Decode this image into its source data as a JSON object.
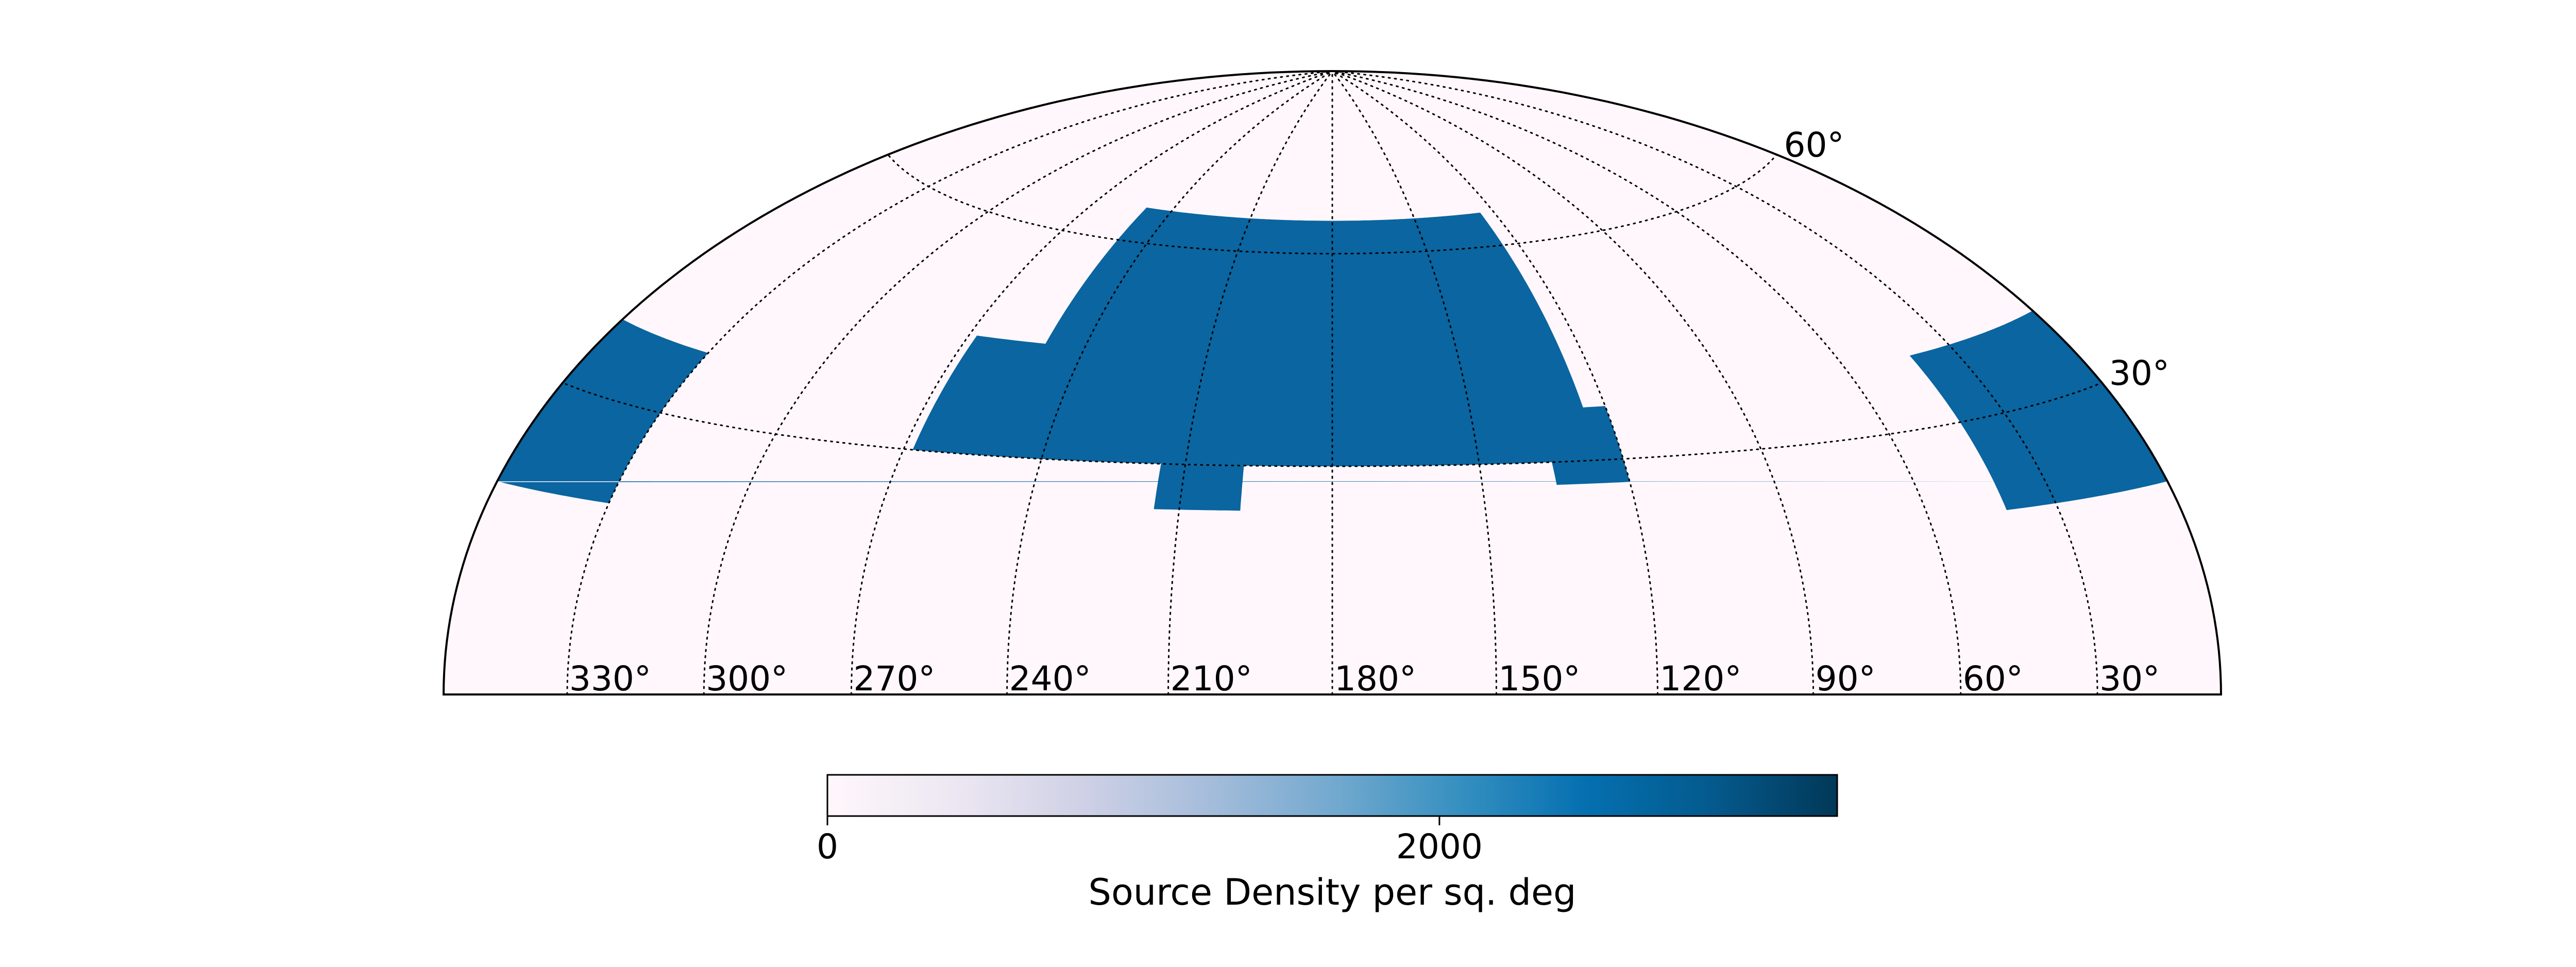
{
  "chart_data": {
    "type": "heatmap",
    "projection": "hammer-aitoff (upper hemisphere)",
    "title": "",
    "meridian_labels": [
      "330°",
      "300°",
      "270°",
      "240°",
      "210°",
      "180°",
      "150°",
      "120°",
      "90°",
      "60°",
      "30°"
    ],
    "meridian_values_deg": [
      330,
      300,
      270,
      240,
      210,
      180,
      150,
      120,
      90,
      60,
      30
    ],
    "parallel_labels": [
      "30°",
      "60°"
    ],
    "parallel_values_deg": [
      30,
      60
    ],
    "lon_direction": "decreasing-left-to-right",
    "grid": true,
    "colorbar": {
      "label": "Source Density per sq. deg",
      "tick_labels": [
        "0",
        "2000"
      ],
      "tick_values": [
        0,
        2000
      ],
      "range": [
        0,
        3300
      ],
      "colormap": "PuBu",
      "colors": [
        "#fff7fb",
        "#ece7f2",
        "#d0d1e6",
        "#a6bddb",
        "#74a9cf",
        "#3690c0",
        "#0570b0",
        "#045a8d",
        "#023858"
      ],
      "placement": "bottom"
    },
    "background_color": "#fff7fb",
    "footprint_color": "#0a65a0",
    "footprint_typical_density": 2300,
    "regions": [
      {
        "name": "north-main-cap",
        "lon_range": [
          125,
          250
        ],
        "lat_range": [
          30,
          65
        ]
      },
      {
        "name": "north-left-shoulder",
        "lon_range": [
          230,
          268
        ],
        "lat_range": [
          30,
          45
        ]
      },
      {
        "name": "north-right-shoulder",
        "lon_range": [
          120,
          135
        ],
        "lat_range": [
          27,
          37
        ]
      },
      {
        "name": "north-lower-notch",
        "lon_range": [
          198,
          215
        ],
        "lat_range": [
          24,
          30
        ]
      },
      {
        "name": "left-edge-patch",
        "lon_range": [
          330,
          360
        ],
        "lat_range": [
          20,
          37
        ]
      },
      {
        "name": "right-edge-patch",
        "lon_range": [
          0,
          42
        ],
        "lat_range": [
          20,
          38
        ]
      }
    ]
  }
}
